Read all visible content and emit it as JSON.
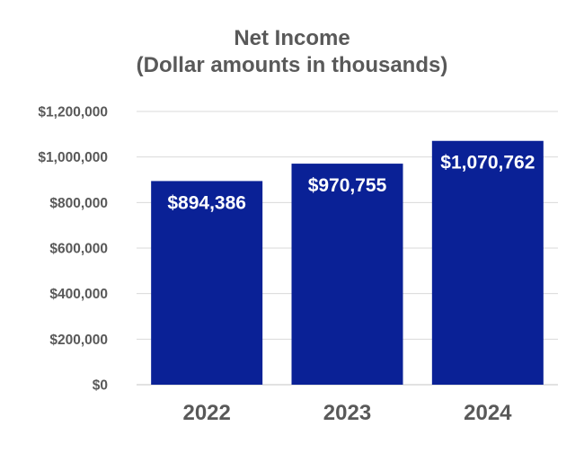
{
  "chart_data": {
    "type": "bar",
    "title": [
      "Net Income",
      "(Dollar amounts in thousands)"
    ],
    "categories": [
      "2022",
      "2023",
      "2024"
    ],
    "values": [
      894386,
      970755,
      1070762
    ],
    "data_labels": [
      "$894,386",
      "$970,755",
      "$1,070,762"
    ],
    "ylim": [
      0,
      1200000
    ],
    "yticks": [
      0,
      200000,
      400000,
      600000,
      800000,
      1000000,
      1200000
    ],
    "ytick_labels": [
      "$0",
      "$200,000",
      "$400,000",
      "$600,000",
      "$800,000",
      "$1,000,000",
      "$1,200,000"
    ],
    "grid": true,
    "legend": "none",
    "colors": {
      "bar": "#0a2196",
      "label": "#ffffff",
      "text": "#595959",
      "grid": "#d9d9d9"
    }
  }
}
